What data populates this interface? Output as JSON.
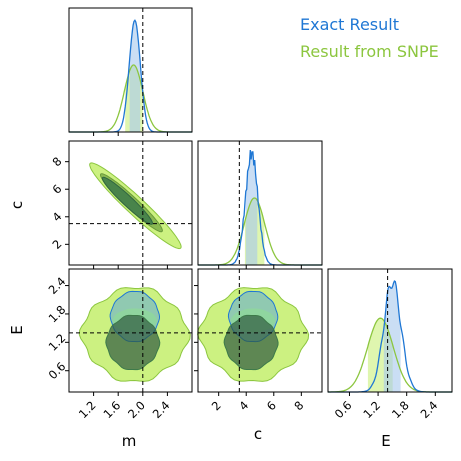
{
  "chart_data": {
    "type": "corner",
    "parameters": [
      "m",
      "c",
      "E"
    ],
    "true_values": {
      "m": 2.0,
      "c": 3.5,
      "E": 1.4
    },
    "axis_ranges": {
      "m": [
        0.8,
        2.8
      ],
      "c": [
        0.5,
        9.5
      ],
      "E": [
        0.15,
        2.75
      ]
    },
    "ticks": {
      "m": [
        "1.2",
        "1.6",
        "2.0",
        "2.4"
      ],
      "c": [
        "2",
        "4",
        "6",
        "8"
      ],
      "E": [
        "0.6",
        "1.2",
        "1.8",
        "2.4"
      ]
    },
    "legend_position": "top-right",
    "series": [
      {
        "name": "Exact Result",
        "color": "#1f77d4",
        "fill": "#a6c8ec",
        "marginals": {
          "m": {
            "mean": 1.87,
            "sd": 0.09
          },
          "c": {
            "mean": 4.4,
            "sd": 0.45
          },
          "E": {
            "mean": 1.5,
            "sd": 0.18
          }
        }
      },
      {
        "name": "Result from SNPE",
        "color": "#8cc63f",
        "fill": "#c9f07a",
        "marginals": {
          "m": {
            "mean": 1.85,
            "sd": 0.15
          },
          "c": {
            "mean": 4.6,
            "sd": 0.75
          },
          "E": {
            "mean": 1.25,
            "sd": 0.27
          }
        }
      }
    ]
  },
  "legend": {
    "items": [
      "Exact Result",
      "Result from SNPE"
    ]
  },
  "labels": {
    "m": "m",
    "c": "c",
    "E": "E"
  }
}
